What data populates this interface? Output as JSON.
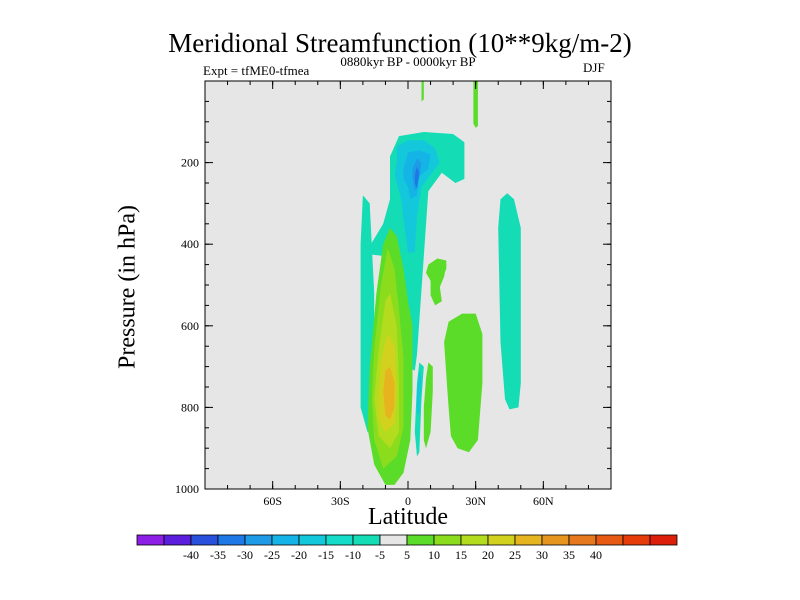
{
  "chart_data": {
    "type": "contour",
    "title": "Meridional Streamfunction (10**9kg/m-2)",
    "subtitle_left": "Expt = tfME0-tfmea",
    "subtitle_center": "0880kyr BP - 0000kyr BP",
    "subtitle_right": "DJF",
    "xlabel": "Latitude",
    "ylabel": "Pressure (in hPa)",
    "xlim": [
      -90,
      90
    ],
    "ylim": [
      1000,
      0
    ],
    "x_ticks": [
      {
        "value": -60,
        "label": "60S"
      },
      {
        "value": -30,
        "label": "30S"
      },
      {
        "value": 0,
        "label": "0"
      },
      {
        "value": 30,
        "label": "30N"
      },
      {
        "value": 60,
        "label": "60N"
      }
    ],
    "y_ticks": [
      {
        "value": 200,
        "label": "200"
      },
      {
        "value": 400,
        "label": "400"
      },
      {
        "value": 600,
        "label": "600"
      },
      {
        "value": 800,
        "label": "800"
      },
      {
        "value": 1000,
        "label": "1000"
      }
    ],
    "background_color": "#e6e6e6",
    "colorbar": {
      "colors": [
        "#8c1ee6",
        "#5a1edc",
        "#2850dc",
        "#1e78e6",
        "#1e9be6",
        "#14b4e6",
        "#14c8dc",
        "#14dcc8",
        "#14dcb4",
        "#e6e6e6",
        "#5adc28",
        "#8cdc1e",
        "#b4dc1e",
        "#d2d21e",
        "#e6b41e",
        "#e6961e",
        "#e6781e",
        "#e65a14",
        "#e63c0a",
        "#dc1e0a"
      ],
      "labels": [
        "-40",
        "-35",
        "-30",
        "-25",
        "-20",
        "-15",
        "-10",
        "-5",
        "5",
        "10",
        "15",
        "20",
        "25",
        "30",
        "35",
        "40"
      ]
    },
    "contours": [
      {
        "name": "sh-high-lat-cell",
        "value": -7,
        "color": "#14dcb4",
        "points": [
          [
            -20,
            280
          ],
          [
            -17,
            300
          ],
          [
            -15,
            520
          ],
          [
            -15,
            850
          ],
          [
            -18,
            860
          ],
          [
            -21,
            800
          ],
          [
            -21,
            400
          ]
        ]
      },
      {
        "name": "upper-negative-cell",
        "value": -7,
        "color": "#14dcb4",
        "points": [
          [
            -8,
            185
          ],
          [
            -4,
            135
          ],
          [
            7,
            125
          ],
          [
            20,
            130
          ],
          [
            25,
            150
          ],
          [
            25,
            240
          ],
          [
            21,
            250
          ],
          [
            15,
            225
          ],
          [
            9,
            270
          ],
          [
            7,
            430
          ],
          [
            4,
            670
          ],
          [
            3,
            710
          ],
          [
            0,
            700
          ],
          [
            -1,
            600
          ],
          [
            -2,
            540
          ],
          [
            -4,
            480
          ],
          [
            -9,
            430
          ],
          [
            -17,
            425
          ],
          [
            -17,
            405
          ],
          [
            -11,
            350
          ],
          [
            -8,
            290
          ],
          [
            -8,
            250
          ]
        ]
      },
      {
        "name": "upper-negative-cell-inner",
        "value": -12,
        "color": "#14c8dc",
        "points": [
          [
            -6,
            230
          ],
          [
            -5,
            200
          ],
          [
            -5,
            160
          ],
          [
            0,
            145
          ],
          [
            7,
            145
          ],
          [
            12,
            165
          ],
          [
            14,
            200
          ],
          [
            10,
            230
          ],
          [
            6,
            260
          ],
          [
            4,
            330
          ],
          [
            3,
            420
          ],
          [
            0,
            420
          ],
          [
            -2,
            340
          ],
          [
            -3,
            290
          ]
        ]
      },
      {
        "name": "upper-negative-cell-core",
        "value": -17,
        "color": "#14b4e6",
        "points": [
          [
            -2,
            215
          ],
          [
            0,
            175
          ],
          [
            5,
            170
          ],
          [
            10,
            180
          ],
          [
            9,
            215
          ],
          [
            5,
            235
          ],
          [
            4,
            280
          ],
          [
            1,
            290
          ],
          [
            0,
            260
          ],
          [
            -2,
            240
          ]
        ]
      },
      {
        "name": "upper-negative-cell-center",
        "value": -22,
        "color": "#1e9be6",
        "points": [
          [
            2,
            215
          ],
          [
            4,
            190
          ],
          [
            6,
            200
          ],
          [
            5,
            235
          ],
          [
            3,
            270
          ],
          [
            2,
            240
          ]
        ]
      },
      {
        "name": "upper-negative-cell-peak",
        "value": -27,
        "color": "#1e78e6",
        "points": [
          [
            3,
            230
          ],
          [
            4,
            210
          ],
          [
            5,
            225
          ],
          [
            4,
            265
          ],
          [
            3,
            250
          ]
        ]
      },
      {
        "name": "nh-positive-upper-blob",
        "value": 7,
        "color": "#5adc28",
        "points": [
          [
            9,
            450
          ],
          [
            13,
            435
          ],
          [
            17,
            440
          ],
          [
            17,
            460
          ],
          [
            14,
            500
          ],
          [
            15,
            540
          ],
          [
            12,
            550
          ],
          [
            10,
            525
          ],
          [
            10,
            490
          ],
          [
            8,
            470
          ]
        ]
      },
      {
        "name": "nh-positive-lower-cell",
        "value": 7,
        "color": "#5adc28",
        "points": [
          [
            16,
            640
          ],
          [
            18,
            590
          ],
          [
            24,
            570
          ],
          [
            30,
            570
          ],
          [
            33,
            620
          ],
          [
            33,
            740
          ],
          [
            31,
            880
          ],
          [
            27,
            910
          ],
          [
            22,
            900
          ],
          [
            19,
            870
          ],
          [
            18,
            800
          ],
          [
            17,
            720
          ]
        ]
      },
      {
        "name": "nh-positive-lower-cell-2",
        "value": 7,
        "color": "#5adc28",
        "points": [
          [
            14,
            460
          ],
          [
            16,
            440
          ],
          [
            17,
            450
          ],
          [
            16,
            480
          ],
          [
            13,
            520
          ],
          [
            12,
            510
          ]
        ]
      },
      {
        "name": "lower-positive-cell",
        "value": 7,
        "color": "#5adc28",
        "points": [
          [
            -18,
            850
          ],
          [
            -17,
            700
          ],
          [
            -14,
            520
          ],
          [
            -11,
            400
          ],
          [
            -8,
            360
          ],
          [
            -5,
            380
          ],
          [
            -2,
            460
          ],
          [
            0,
            540
          ],
          [
            2,
            600
          ],
          [
            2,
            760
          ],
          [
            1,
            880
          ],
          [
            -2,
            960
          ],
          [
            -6,
            990
          ],
          [
            -10,
            990
          ],
          [
            -15,
            940
          ]
        ]
      },
      {
        "name": "lower-positive-cell-ring2",
        "value": 12,
        "color": "#8cdc1e",
        "points": [
          [
            -16,
            780
          ],
          [
            -15,
            660
          ],
          [
            -12,
            500
          ],
          [
            -9,
            410
          ],
          [
            -6,
            460
          ],
          [
            -4,
            560
          ],
          [
            -2,
            680
          ],
          [
            -2,
            850
          ],
          [
            -5,
            920
          ],
          [
            -11,
            950
          ],
          [
            -15,
            880
          ]
        ]
      },
      {
        "name": "lower-positive-cell-ring3",
        "value": 17,
        "color": "#b4dc1e",
        "points": [
          [
            -15,
            780
          ],
          [
            -13,
            660
          ],
          [
            -10,
            540
          ],
          [
            -8,
            520
          ],
          [
            -5,
            600
          ],
          [
            -4,
            740
          ],
          [
            -4,
            860
          ],
          [
            -8,
            900
          ],
          [
            -13,
            870
          ]
        ]
      },
      {
        "name": "lower-positive-cell-ring4",
        "value": 22,
        "color": "#d2d21e",
        "points": [
          [
            -13,
            780
          ],
          [
            -12,
            690
          ],
          [
            -9,
            620
          ],
          [
            -6,
            650
          ],
          [
            -5,
            760
          ],
          [
            -6,
            840
          ],
          [
            -10,
            860
          ],
          [
            -13,
            830
          ]
        ]
      },
      {
        "name": "lower-positive-cell-core",
        "value": 27,
        "color": "#e6b41e",
        "points": [
          [
            -11,
            760
          ],
          [
            -10,
            710
          ],
          [
            -8,
            700
          ],
          [
            -6,
            740
          ],
          [
            -6,
            800
          ],
          [
            -8,
            830
          ],
          [
            -10,
            820
          ]
        ]
      },
      {
        "name": "equatorial-positive-strip",
        "value": 7,
        "color": "#5adc28",
        "points": [
          [
            8,
            730
          ],
          [
            9,
            690
          ],
          [
            11,
            700
          ],
          [
            11,
            760
          ],
          [
            10,
            860
          ],
          [
            8,
            900
          ],
          [
            7,
            880
          ],
          [
            7,
            800
          ]
        ]
      },
      {
        "name": "equatorial-negative-finger",
        "value": -7,
        "color": "#14dcb4",
        "points": [
          [
            4,
            740
          ],
          [
            5,
            690
          ],
          [
            7,
            700
          ],
          [
            6,
            780
          ],
          [
            5,
            910
          ],
          [
            4,
            920
          ],
          [
            3,
            860
          ]
        ]
      },
      {
        "name": "equatorial-blue-finger",
        "value": -12,
        "color": "#14c8dc",
        "points": [
          [
            4,
            760
          ],
          [
            5,
            710
          ],
          [
            6,
            730
          ],
          [
            5,
            820
          ],
          [
            4,
            810
          ]
        ]
      },
      {
        "name": "top-green-mark",
        "value": 7,
        "color": "#5adc28",
        "points": [
          [
            6,
            0
          ],
          [
            7,
            0
          ],
          [
            7,
            45
          ],
          [
            6,
            50
          ]
        ]
      },
      {
        "name": "top-right-green-mark",
        "value": 7,
        "color": "#5adc28",
        "points": [
          [
            29,
            0
          ],
          [
            31,
            0
          ],
          [
            31,
            110
          ],
          [
            30,
            115
          ],
          [
            29,
            105
          ]
        ]
      },
      {
        "name": "nh-high-lat-cell",
        "value": -7,
        "color": "#14dcb4",
        "points": [
          [
            40,
            360
          ],
          [
            41,
            290
          ],
          [
            44,
            275
          ],
          [
            47,
            290
          ],
          [
            50,
            360
          ],
          [
            50,
            740
          ],
          [
            49,
            800
          ],
          [
            45,
            805
          ],
          [
            43,
            780
          ],
          [
            41,
            640
          ]
        ]
      }
    ]
  }
}
